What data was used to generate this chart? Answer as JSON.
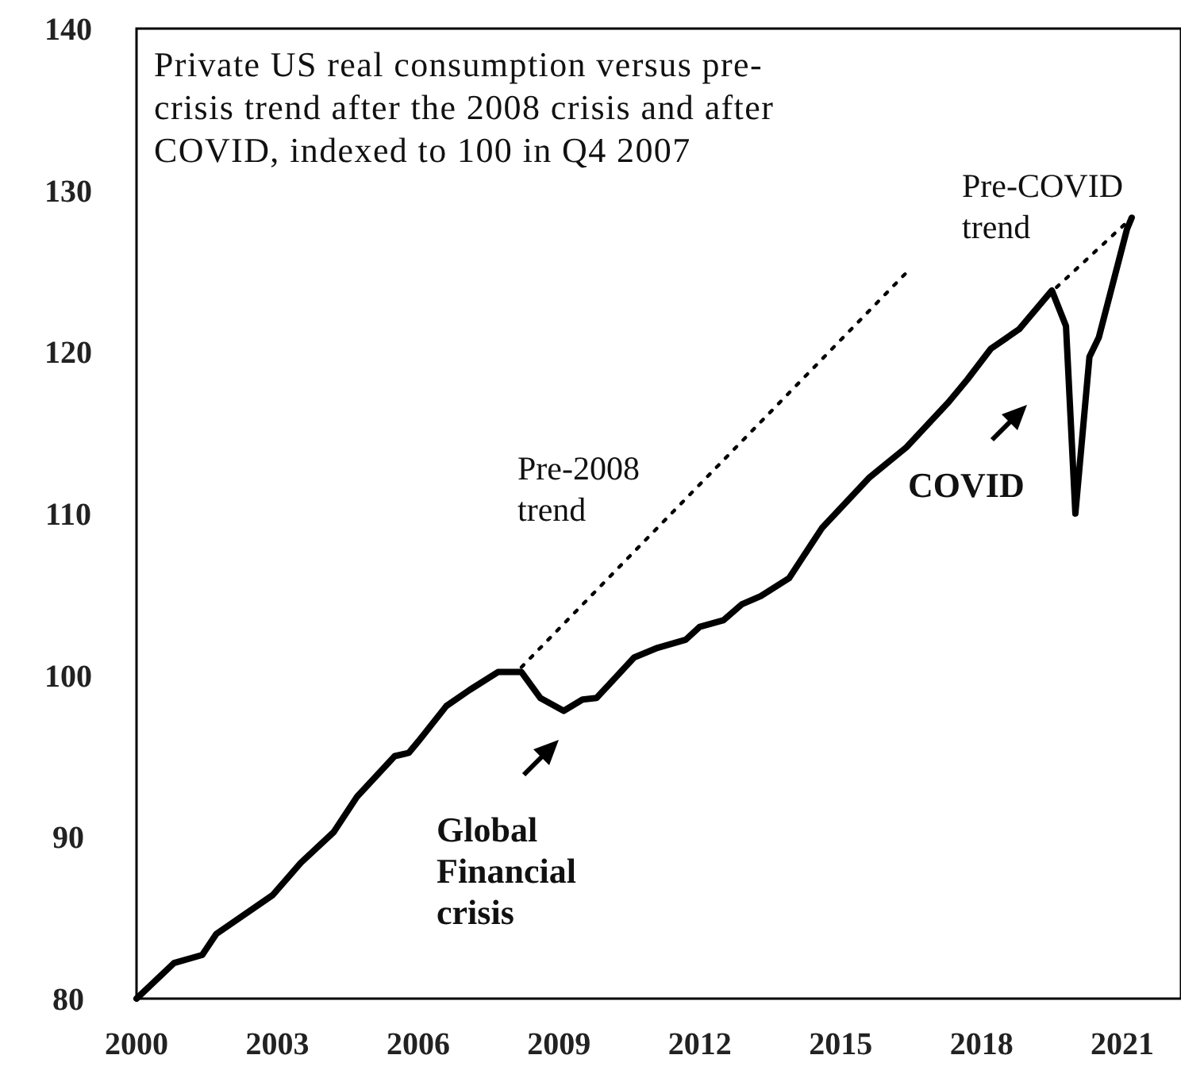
{
  "chart_data": {
    "type": "line",
    "title": "Private US real consumption versus pre-crisis trend after the 2008 crisis and after COVID, indexed to 100 in Q4 2007",
    "xlim": [
      2000,
      2022.25
    ],
    "xticks": [
      2000,
      2003,
      2006,
      2009,
      2012,
      2015,
      2018,
      2021
    ],
    "ylim": [
      80,
      140
    ],
    "yticks": [
      80,
      90,
      100,
      110,
      120,
      130,
      140
    ],
    "grid": false,
    "marker": "none",
    "series": [
      {
        "color": "#000000",
        "line_style": "solid",
        "x": [
          2000,
          2000.8,
          2001.4,
          2001.7,
          2002.9,
          2003.5,
          2004.2,
          2004.7,
          2005.5,
          2005.8,
          2006.0,
          2006.6,
          2007.1,
          2007.7,
          2008.2,
          2008.6,
          2009.1,
          2009.5,
          2009.8,
          2010.6,
          2011.1,
          2011.7,
          2012.0,
          2012.5,
          2012.9,
          2013.3,
          2013.9,
          2014.6,
          2015.6,
          2016.4,
          2017.3,
          2017.7,
          2018.2,
          2018.8,
          2019.5,
          2019.8,
          2020.0,
          2020.3,
          2020.5,
          2021.1,
          2021.2
        ],
        "values": [
          80,
          82.2,
          82.7,
          84.0,
          86.4,
          88.4,
          90.3,
          92.5,
          95.0,
          95.2,
          95.9,
          98.1,
          99.1,
          100.2,
          100.2,
          98.6,
          97.8,
          98.5,
          98.6,
          101.1,
          101.7,
          102.2,
          103.0,
          103.4,
          104.4,
          104.9,
          106.0,
          109.1,
          112.2,
          114.1,
          116.9,
          118.3,
          120.2,
          121.4,
          123.8,
          121.6,
          110.0,
          119.7,
          120.9,
          127.6,
          128.3
        ]
      },
      {
        "color": "#000000",
        "line_style": "dotted",
        "x": [
          2008.2,
          2016.5
        ],
        "values": [
          100.5,
          125.2
        ]
      },
      {
        "color": "#000000",
        "line_style": "dotted",
        "x": [
          2019.6,
          2021.2
        ],
        "values": [
          124.0,
          128.3
        ]
      }
    ],
    "annotations": [
      "Pre-2008 trend",
      "Pre-COVID trend",
      "COVID",
      "Global Financial crisis"
    ]
  }
}
